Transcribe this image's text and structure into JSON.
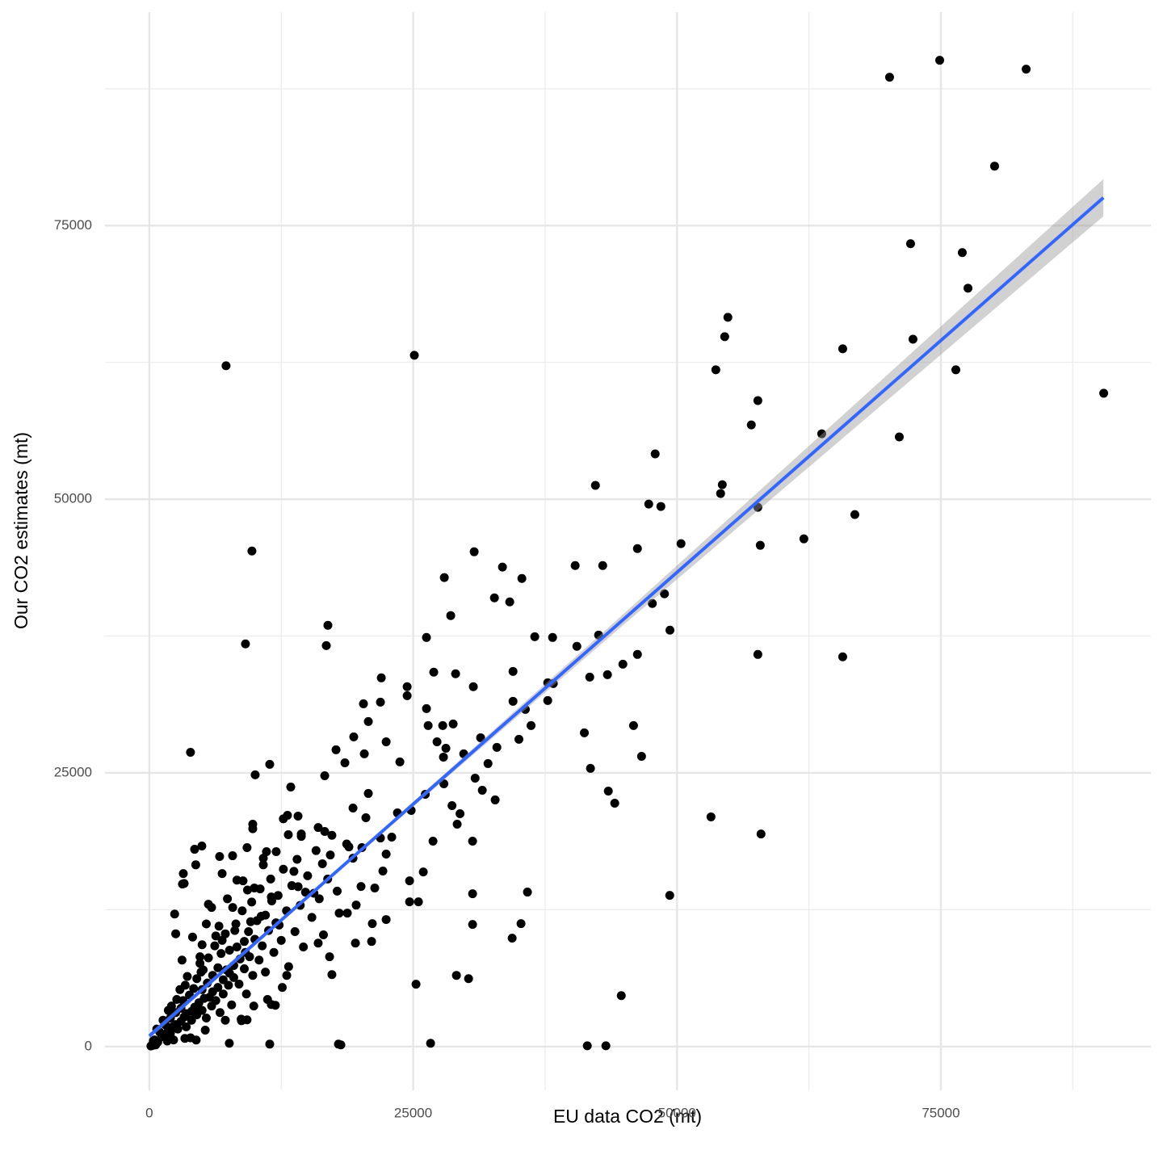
{
  "chart_data": {
    "type": "scatter",
    "x_label": "EU data CO2 (mt)",
    "y_label": "Our CO2 estimates (mt)",
    "xlim": [
      -4200,
      94900
    ],
    "ylim": [
      -4000,
      94500
    ],
    "xticks": [
      0,
      25000,
      50000,
      75000
    ],
    "yticks": [
      0,
      25000,
      50000,
      75000
    ],
    "x_minor_grid": [
      12500,
      37500,
      62500,
      87500
    ],
    "y_minor_grid": [
      12500,
      37500,
      62500,
      87500
    ],
    "grid": true,
    "color": "#000000",
    "fit": {
      "color": "#3366FF",
      "band_color": "#999999",
      "x": [
        0,
        90400
      ],
      "y": [
        960,
        77550
      ],
      "band_x": [
        0,
        20000,
        45000,
        90400
      ],
      "band_low": [
        700,
        17750,
        38580,
        75850
      ],
      "band_high": [
        1220,
        18050,
        39580,
        79250
      ]
    },
    "points": [
      [
        74890,
        90100
      ],
      [
        70140,
        88550
      ],
      [
        83080,
        89290
      ],
      [
        80090,
        80430
      ],
      [
        72130,
        73340
      ],
      [
        77030,
        72530
      ],
      [
        77570,
        69280
      ],
      [
        72360,
        64620
      ],
      [
        76420,
        61820
      ],
      [
        90430,
        59680
      ],
      [
        54820,
        66620
      ],
      [
        54520,
        64850
      ],
      [
        53680,
        61820
      ],
      [
        57660,
        59010
      ],
      [
        57040,
        56790
      ],
      [
        63710,
        55980
      ],
      [
        71060,
        55690
      ],
      [
        65700,
        63740
      ],
      [
        47930,
        54140
      ],
      [
        54290,
        51330
      ],
      [
        54130,
        50520
      ],
      [
        42270,
        51260
      ],
      [
        47320,
        49560
      ],
      [
        48470,
        49340
      ],
      [
        57660,
        49260
      ],
      [
        66850,
        48600
      ],
      [
        62020,
        46380
      ],
      [
        50380,
        45940
      ],
      [
        46250,
        45490
      ],
      [
        57890,
        45790
      ],
      [
        7270,
        62190
      ],
      [
        25110,
        63150
      ],
      [
        9720,
        45270
      ],
      [
        9110,
        36780
      ],
      [
        3900,
        26880
      ],
      [
        16920,
        38480
      ],
      [
        16770,
        36630
      ],
      [
        30780,
        45200
      ],
      [
        33460,
        43800
      ],
      [
        35300,
        42760
      ],
      [
        27950,
        42840
      ],
      [
        32700,
        40990
      ],
      [
        34150,
        40620
      ],
      [
        28560,
        39370
      ],
      [
        26260,
        37370
      ],
      [
        36520,
        37440
      ],
      [
        38210,
        37370
      ],
      [
        40350,
        43940
      ],
      [
        42960,
        43940
      ],
      [
        47660,
        40470
      ],
      [
        48810,
        41360
      ],
      [
        49330,
        38040
      ],
      [
        42570,
        37590
      ],
      [
        40510,
        36560
      ],
      [
        46250,
        35820
      ],
      [
        44870,
        34930
      ],
      [
        43410,
        33970
      ],
      [
        41730,
        33750
      ],
      [
        57660,
        35820
      ],
      [
        65700,
        35600
      ],
      [
        37750,
        33230
      ],
      [
        38280,
        33160
      ],
      [
        37750,
        31610
      ],
      [
        34460,
        34270
      ],
      [
        34460,
        31540
      ],
      [
        30700,
        32870
      ],
      [
        26950,
        34200
      ],
      [
        29020,
        34050
      ],
      [
        21980,
        33680
      ],
      [
        24430,
        32870
      ],
      [
        24430,
        32050
      ],
      [
        26260,
        30870
      ],
      [
        20290,
        31310
      ],
      [
        21900,
        31460
      ],
      [
        20750,
        29690
      ],
      [
        19370,
        28290
      ],
      [
        22440,
        27840
      ],
      [
        17690,
        27110
      ],
      [
        18530,
        25920
      ],
      [
        20370,
        26740
      ],
      [
        23740,
        26000
      ],
      [
        11410,
        25780
      ],
      [
        10030,
        24820
      ],
      [
        16620,
        24740
      ],
      [
        26420,
        29320
      ],
      [
        27800,
        29320
      ],
      [
        28790,
        29470
      ],
      [
        27260,
        27840
      ],
      [
        28100,
        27250
      ],
      [
        27870,
        26440
      ],
      [
        29790,
        26740
      ],
      [
        31390,
        28210
      ],
      [
        32930,
        27330
      ],
      [
        32090,
        25850
      ],
      [
        30870,
        24520
      ],
      [
        31550,
        23410
      ],
      [
        35020,
        28070
      ],
      [
        36170,
        29320
      ],
      [
        35630,
        30800
      ],
      [
        41220,
        28660
      ],
      [
        45880,
        29320
      ],
      [
        46640,
        26510
      ],
      [
        41800,
        25410
      ],
      [
        43490,
        23340
      ],
      [
        44100,
        22230
      ],
      [
        32770,
        22530
      ],
      [
        53220,
        20980
      ],
      [
        57960,
        19420
      ],
      [
        49310,
        13810
      ],
      [
        35830,
        14110
      ],
      [
        35220,
        11230
      ],
      [
        34380,
        9900
      ],
      [
        30630,
        13960
      ],
      [
        30630,
        11150
      ],
      [
        30630,
        18760
      ],
      [
        29170,
        20310
      ],
      [
        29100,
        6500
      ],
      [
        30250,
        6200
      ],
      [
        25270,
        5690
      ],
      [
        44720,
        4650
      ],
      [
        41500,
        70
      ],
      [
        43260,
        70
      ],
      [
        26650,
        300
      ],
      [
        17920,
        220
      ],
      [
        18150,
        150
      ],
      [
        11410,
        220
      ],
      [
        7580,
        300
      ],
      [
        25960,
        15950
      ],
      [
        26880,
        18760
      ],
      [
        25500,
        13220
      ],
      [
        24660,
        15140
      ],
      [
        24660,
        13220
      ],
      [
        22440,
        11600
      ],
      [
        21060,
        9600
      ],
      [
        19530,
        9450
      ],
      [
        21130,
        11230
      ],
      [
        19600,
        12920
      ],
      [
        20060,
        14620
      ],
      [
        21360,
        14480
      ],
      [
        22130,
        16030
      ],
      [
        22440,
        17580
      ],
      [
        21900,
        19050
      ],
      [
        22970,
        19130
      ],
      [
        24810,
        21570
      ],
      [
        23510,
        21340
      ],
      [
        26150,
        23040
      ],
      [
        27910,
        24000
      ],
      [
        28680,
        22010
      ],
      [
        29440,
        21270
      ],
      [
        19300,
        21790
      ],
      [
        20750,
        23120
      ],
      [
        20520,
        20900
      ],
      [
        13400,
        23710
      ],
      [
        13090,
        21120
      ],
      [
        14090,
        21050
      ],
      [
        16000,
        20010
      ],
      [
        14400,
        19420
      ],
      [
        17150,
        17500
      ],
      [
        20140,
        18170
      ],
      [
        18910,
        18240
      ],
      [
        16620,
        19650
      ],
      [
        9260,
        18170
      ],
      [
        6660,
        17360
      ],
      [
        4980,
        18320
      ],
      [
        4290,
        18020
      ],
      [
        7890,
        17430
      ],
      [
        11100,
        17800
      ],
      [
        12020,
        17800
      ],
      [
        9800,
        20310
      ],
      [
        13170,
        19350
      ],
      [
        3220,
        15800
      ],
      [
        8880,
        15140
      ],
      [
        11560,
        13660
      ],
      [
        3140,
        14840
      ],
      [
        9950,
        14480
      ],
      [
        17990,
        12190
      ],
      [
        18760,
        12190
      ],
      [
        13020,
        6500
      ],
      [
        16000,
        9450
      ],
      [
        17080,
        8200
      ],
      [
        17300,
        6570
      ],
      [
        11560,
        3840
      ],
      [
        11940,
        3770
      ],
      [
        8730,
        2360
      ],
      [
        9260,
        2440
      ],
      [
        4440,
        590
      ],
      [
        3370,
        740
      ],
      [
        380,
        520
      ],
      [
        500,
        600
      ],
      [
        800,
        400
      ],
      [
        1000,
        1300
      ],
      [
        1200,
        900
      ],
      [
        1500,
        1100
      ],
      [
        1500,
        2000
      ],
      [
        1800,
        1500
      ],
      [
        2000,
        2600
      ],
      [
        2000,
        1200
      ],
      [
        2200,
        1800
      ],
      [
        2500,
        3100
      ],
      [
        2500,
        2000
      ],
      [
        2700,
        1600
      ],
      [
        3000,
        3500
      ],
      [
        3000,
        2300
      ],
      [
        3200,
        4200
      ],
      [
        3300,
        2700
      ],
      [
        3500,
        1800
      ],
      [
        3500,
        3000
      ],
      [
        3800,
        4700
      ],
      [
        4000,
        3200
      ],
      [
        4000,
        2400
      ],
      [
        4200,
        5300
      ],
      [
        4300,
        3600
      ],
      [
        4500,
        6200
      ],
      [
        4500,
        2900
      ],
      [
        4700,
        4000
      ],
      [
        5000,
        5200
      ],
      [
        5000,
        3300
      ],
      [
        5100,
        7000
      ],
      [
        5200,
        4400
      ],
      [
        5400,
        2600
      ],
      [
        5500,
        5800
      ],
      [
        5600,
        8100
      ],
      [
        5700,
        4500
      ],
      [
        5900,
        3700
      ],
      [
        6000,
        6500
      ],
      [
        6000,
        5000
      ],
      [
        6200,
        9200
      ],
      [
        6300,
        4200
      ],
      [
        6500,
        7200
      ],
      [
        6500,
        5400
      ],
      [
        6700,
        3100
      ],
      [
        6800,
        8500
      ],
      [
        7000,
        6100
      ],
      [
        7000,
        4800
      ],
      [
        7200,
        10300
      ],
      [
        7300,
        7000
      ],
      [
        7500,
        5600
      ],
      [
        7600,
        8800
      ],
      [
        7800,
        3800
      ],
      [
        8000,
        7400
      ],
      [
        8000,
        6300
      ],
      [
        8200,
        11200
      ],
      [
        8300,
        9100
      ],
      [
        8500,
        5700
      ],
      [
        8600,
        8000
      ],
      [
        8800,
        12400
      ],
      [
        9000,
        7100
      ],
      [
        9000,
        9600
      ],
      [
        9200,
        4800
      ],
      [
        9400,
        10500
      ],
      [
        9500,
        8200
      ],
      [
        9700,
        13200
      ],
      [
        9800,
        6500
      ],
      [
        10000,
        9800
      ],
      [
        10200,
        11500
      ],
      [
        10400,
        7900
      ],
      [
        10500,
        14400
      ],
      [
        10700,
        9200
      ],
      [
        11000,
        12000
      ],
      [
        11000,
        6800
      ],
      [
        11300,
        10600
      ],
      [
        11500,
        15300
      ],
      [
        11800,
        8600
      ],
      [
        12000,
        11300
      ],
      [
        12200,
        13800
      ],
      [
        12500,
        9700
      ],
      [
        12700,
        16200
      ],
      [
        13000,
        12400
      ],
      [
        13200,
        7300
      ],
      [
        13500,
        14700
      ],
      [
        13800,
        10500
      ],
      [
        14000,
        17100
      ],
      [
        14300,
        12900
      ],
      [
        14600,
        9100
      ],
      [
        15000,
        15600
      ],
      [
        15400,
        11800
      ],
      [
        15800,
        17900
      ],
      [
        16100,
        13500
      ],
      [
        16500,
        10200
      ],
      [
        16900,
        15300
      ],
      [
        17300,
        19300
      ],
      [
        17800,
        14200
      ],
      [
        3600,
        6400
      ],
      [
        4800,
        8200
      ],
      [
        2900,
        5200
      ],
      [
        1800,
        3300
      ],
      [
        6600,
        11000
      ],
      [
        7900,
        12700
      ],
      [
        9300,
        14300
      ],
      [
        10800,
        16600
      ],
      [
        3100,
        7900
      ],
      [
        4100,
        10000
      ],
      [
        5400,
        11200
      ],
      [
        2400,
        12100
      ],
      [
        5900,
        12700
      ],
      [
        7400,
        13500
      ],
      [
        7200,
        2400
      ],
      [
        8700,
        2500
      ],
      [
        9900,
        3700
      ],
      [
        11200,
        4300
      ],
      [
        12600,
        5400
      ],
      [
        5300,
        1500
      ],
      [
        3900,
        800
      ],
      [
        2300,
        600
      ],
      [
        600,
        150
      ],
      [
        300,
        100
      ],
      [
        150,
        50
      ],
      [
        1700,
        500
      ],
      [
        2600,
        4300
      ],
      [
        4900,
        6800
      ],
      [
        6900,
        9700
      ],
      [
        8100,
        10600
      ],
      [
        9600,
        11400
      ],
      [
        11600,
        13300
      ],
      [
        13700,
        16000
      ],
      [
        14800,
        14100
      ],
      [
        16400,
        16700
      ],
      [
        18700,
        18500
      ],
      [
        19300,
        17200
      ],
      [
        14400,
        19200
      ],
      [
        3300,
        14900
      ],
      [
        5600,
        13000
      ],
      [
        8300,
        15200
      ],
      [
        10800,
        17200
      ],
      [
        12700,
        20800
      ],
      [
        9800,
        19900
      ],
      [
        2500,
        10300
      ],
      [
        6900,
        15800
      ],
      [
        4400,
        16600
      ],
      [
        4800,
        7600
      ],
      [
        700,
        1600
      ],
      [
        1300,
        2400
      ],
      [
        2100,
        3700
      ],
      [
        3400,
        5600
      ],
      [
        5000,
        9300
      ],
      [
        6300,
        10100
      ],
      [
        7600,
        6700
      ],
      [
        9100,
        8600
      ],
      [
        10600,
        11900
      ],
      [
        12300,
        11100
      ],
      [
        14100,
        14600
      ],
      [
        15600,
        14000
      ]
    ]
  }
}
